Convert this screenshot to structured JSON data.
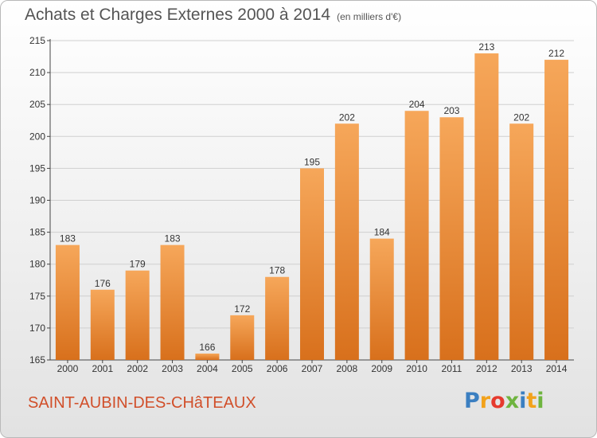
{
  "header": {
    "title": "Achats et Charges Externes 2000 à 2014",
    "subtitle": "(en milliers d'€)"
  },
  "footer": {
    "commune": "SAINT-AUBIN-DES-CHâTEAUX",
    "logo_letters": [
      "P",
      "r",
      "o",
      "x",
      "i",
      "t",
      "i"
    ],
    "logo_colors": [
      "#3b7fc1",
      "#f2a21b",
      "#e63a2e",
      "#6fb43f",
      "#3b7fc1",
      "#f2a21b",
      "#6fb43f"
    ]
  },
  "chart_data": {
    "type": "bar",
    "categories": [
      "2000",
      "2001",
      "2002",
      "2003",
      "2004",
      "2005",
      "2006",
      "2007",
      "2008",
      "2009",
      "2010",
      "2011",
      "2012",
      "2013",
      "2014"
    ],
    "values": [
      183,
      176,
      179,
      183,
      166,
      172,
      178,
      195,
      202,
      184,
      204,
      203,
      213,
      202,
      212
    ],
    "ylim": [
      165,
      215
    ],
    "yticks": [
      165,
      170,
      175,
      180,
      185,
      190,
      195,
      200,
      205,
      210,
      215
    ],
    "grid": true,
    "bar_color": "#f0923a",
    "title": "Achats et Charges Externes 2000 à 2014",
    "xlabel": "",
    "ylabel": ""
  }
}
